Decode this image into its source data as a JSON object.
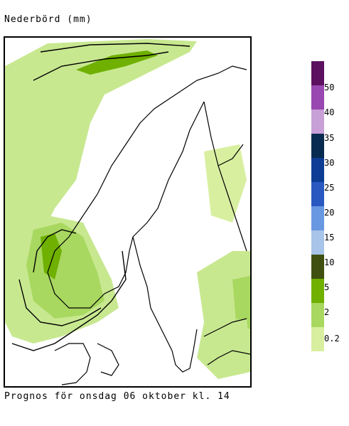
{
  "map": {
    "title": "Nederbörd (mm)",
    "caption": "Prognos för onsdag 06 oktober kl. 14"
  },
  "legend": {
    "colors": [
      "#f9f9c8",
      "#d8efa0",
      "#a8d860",
      "#6fb000",
      "#405010",
      "#a8c4e8",
      "#6898e0",
      "#2858c0",
      "#0c3c94",
      "#082c50",
      "#c8a0d8",
      "#9848b0",
      "#5c1060"
    ],
    "labels": [
      "0.2",
      "2",
      "5",
      "10",
      "15",
      "20",
      "25",
      "30",
      "35",
      "40",
      "50"
    ]
  }
}
